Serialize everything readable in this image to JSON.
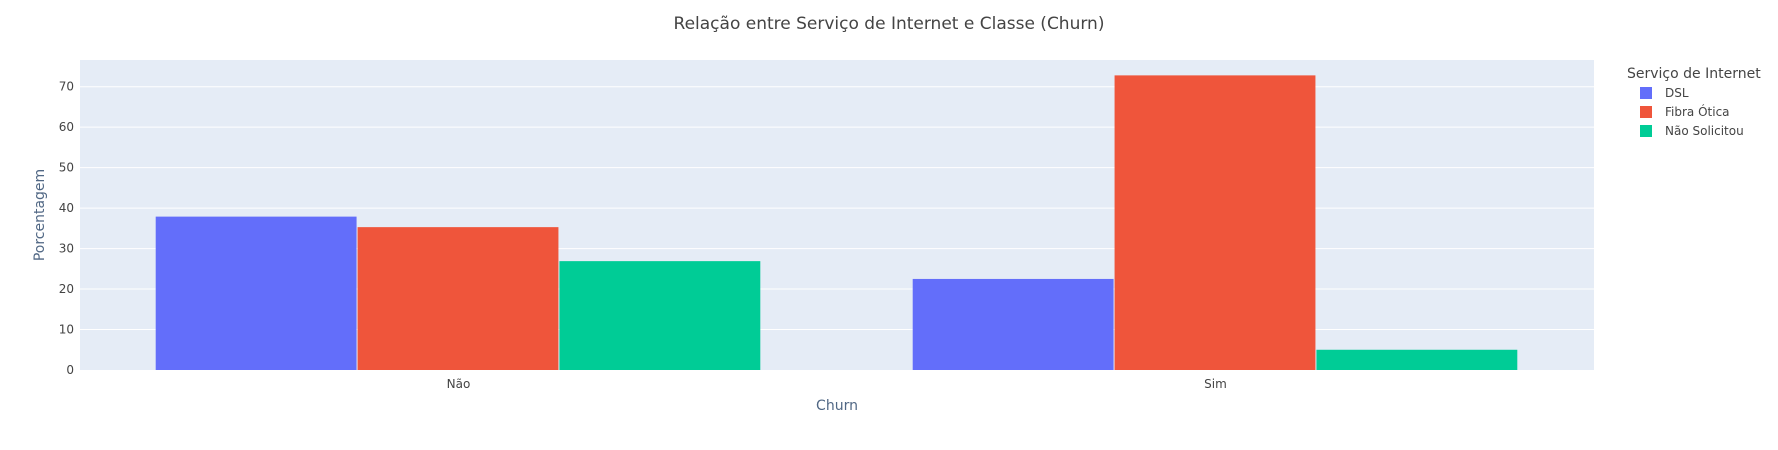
{
  "chart_data": {
    "type": "bar",
    "title": "Relação entre Serviço de Internet e Classe (Churn)",
    "xlabel": "Churn",
    "ylabel": "Porcentagem",
    "categories": [
      "Não",
      "Sim"
    ],
    "series": [
      {
        "name": "DSL",
        "color": "#636efa",
        "values": [
          37.9,
          22.5
        ]
      },
      {
        "name": "Fibra Ótica",
        "color": "#ef553b",
        "values": [
          35.3,
          72.8
        ]
      },
      {
        "name": "Não Solicitou",
        "color": "#00cc96",
        "values": [
          26.9,
          5.0
        ]
      }
    ],
    "ylim": [
      0,
      76.6
    ],
    "yticks": [
      0,
      10,
      20,
      30,
      40,
      50,
      60,
      70
    ],
    "grid": true,
    "legend_title": "Serviço de Internet",
    "legend_position": "top-right",
    "plot_background": "#e5ecf6"
  }
}
